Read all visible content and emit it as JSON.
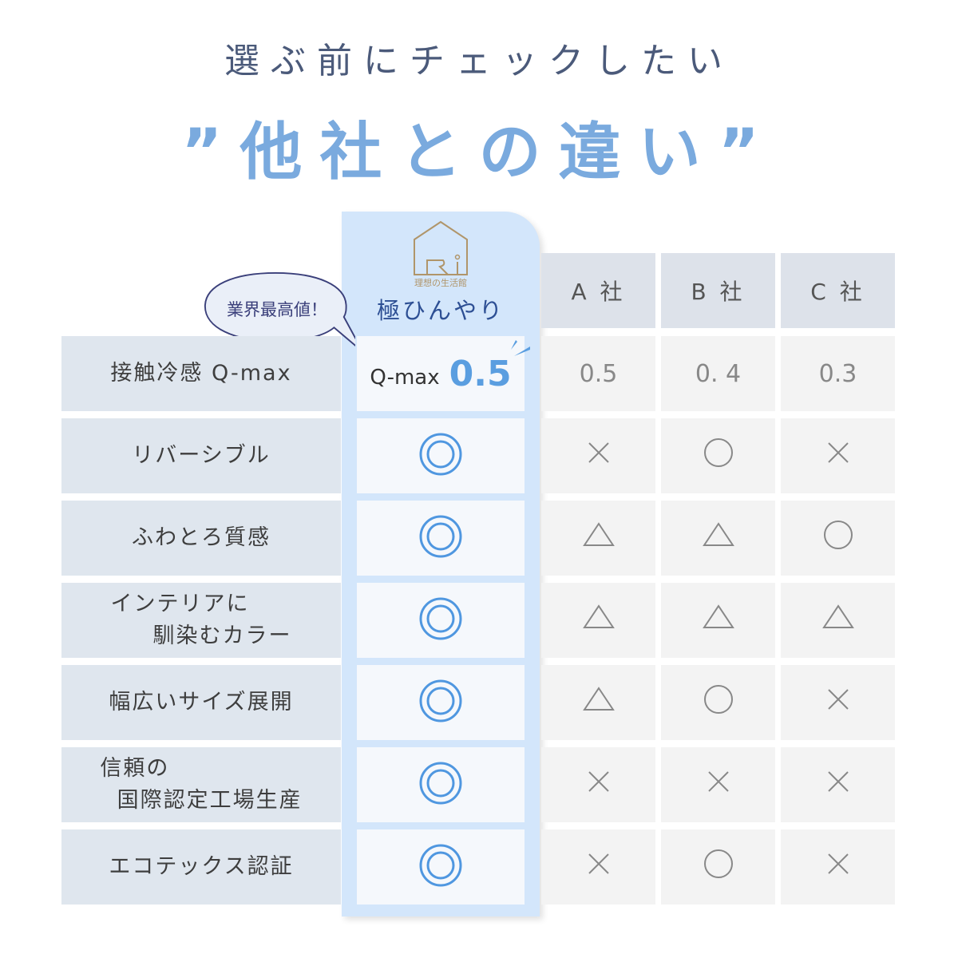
{
  "title": {
    "line1": "選ぶ前にチェックしたい",
    "line2": "”他社との違い”"
  },
  "product": {
    "logo_text": "理想の生活館",
    "name": "極ひんやり",
    "badge": "業界最高値！",
    "qmax_label": "Q-max",
    "qmax_value": "0.5"
  },
  "companies": [
    "A 社",
    "B 社",
    "C 社"
  ],
  "colors": {
    "accent": "#5a9ee0",
    "title": "#7aaade",
    "highlight": "#d3e6fb"
  },
  "rows": [
    {
      "label": "接触冷感 Q-max",
      "ours": "",
      "others": [
        "0.5",
        "0. 4",
        "0.3"
      ]
    },
    {
      "label": "リバーシブル",
      "ours": "double-circle",
      "others": [
        "cross",
        "circle",
        "cross"
      ]
    },
    {
      "label": "ふわとろ質感",
      "ours": "double-circle",
      "others": [
        "triangle",
        "triangle",
        "circle"
      ]
    },
    {
      "label": "インテリアに\n     馴染むカラー",
      "ours": "double-circle",
      "others": [
        "triangle",
        "triangle",
        "triangle"
      ]
    },
    {
      "label": "幅広いサイズ展開",
      "ours": "double-circle",
      "others": [
        "triangle",
        "circle",
        "cross"
      ]
    },
    {
      "label": "信頼の\n  国際認定工場生産",
      "ours": "double-circle",
      "others": [
        "cross",
        "cross",
        "cross"
      ]
    },
    {
      "label": "エコテックス認証",
      "ours": "double-circle",
      "others": [
        "cross",
        "circle",
        "cross"
      ]
    }
  ]
}
